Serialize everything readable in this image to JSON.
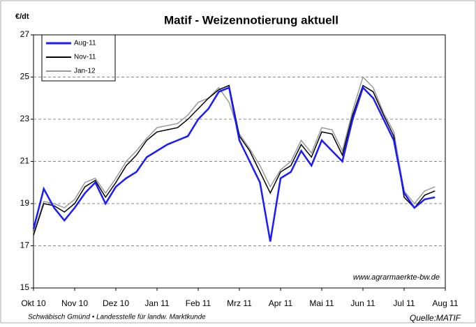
{
  "chart_data": {
    "type": "line",
    "title": "Matif - Weizennotierung aktuell",
    "y_label": "€/dt",
    "annotation": "www.agrarmaerkte-bw.de",
    "footer": "Schwäbisch Gmünd • Landesstelle für landw. Marktkunde",
    "source": "Quelle:MATIF",
    "categories": [
      "Okt 10",
      null,
      null,
      null,
      "Nov 10",
      null,
      null,
      null,
      "Dez 10",
      null,
      null,
      null,
      "Jan 11",
      null,
      null,
      null,
      "Feb 11",
      null,
      null,
      null,
      "Mrz 11",
      null,
      null,
      null,
      "Apr 11",
      null,
      null,
      null,
      "Mai 11",
      null,
      null,
      null,
      "Jun 11",
      null,
      null,
      null,
      "Jul 11",
      null,
      null,
      null,
      "Aug 11"
    ],
    "series": [
      {
        "name": "Aug-11",
        "color": "#1a1aff",
        "values": [
          17.8,
          19.7,
          18.8,
          18.2,
          18.8,
          19.5,
          20.0,
          19.0,
          19.8,
          20.2,
          20.5,
          21.2,
          21.5,
          21.8,
          22.0,
          22.2,
          23.0,
          23.5,
          24.3,
          24.5,
          22.0,
          21.0,
          20.0,
          17.2,
          20.2,
          20.5,
          21.5,
          20.8,
          22.0,
          21.5,
          21.0,
          23.0,
          24.5,
          24.0,
          23.0,
          22.0,
          19.5,
          18.8,
          19.2,
          19.3,
          null
        ]
      },
      {
        "name": "Nov-11",
        "color": "#000000",
        "values": [
          17.5,
          19.0,
          18.9,
          18.6,
          19.0,
          19.8,
          20.1,
          19.3,
          20.0,
          20.8,
          21.3,
          22.0,
          22.4,
          22.5,
          22.6,
          23.0,
          23.5,
          24.0,
          24.4,
          24.6,
          22.2,
          21.5,
          20.5,
          19.5,
          20.5,
          20.8,
          21.8,
          21.2,
          22.4,
          22.3,
          21.3,
          23.2,
          24.6,
          24.3,
          23.2,
          22.2,
          19.3,
          18.8,
          19.4,
          19.6,
          null
        ]
      },
      {
        "name": "Jan-12",
        "color": "#999999",
        "values": [
          17.6,
          19.1,
          19.0,
          18.8,
          19.2,
          20.0,
          20.2,
          19.5,
          20.2,
          21.0,
          21.5,
          22.1,
          22.6,
          22.7,
          22.8,
          23.2,
          23.8,
          24.0,
          24.5,
          23.8,
          22.3,
          21.6,
          20.8,
          19.8,
          20.6,
          21.0,
          22.0,
          21.4,
          22.6,
          22.5,
          21.5,
          23.4,
          25.0,
          24.5,
          23.3,
          22.4,
          19.6,
          19.0,
          19.6,
          19.8,
          null
        ]
      }
    ],
    "ylim": [
      15,
      27
    ],
    "yticks": [
      15,
      17,
      19,
      21,
      23,
      25,
      27
    ],
    "grid": true
  }
}
